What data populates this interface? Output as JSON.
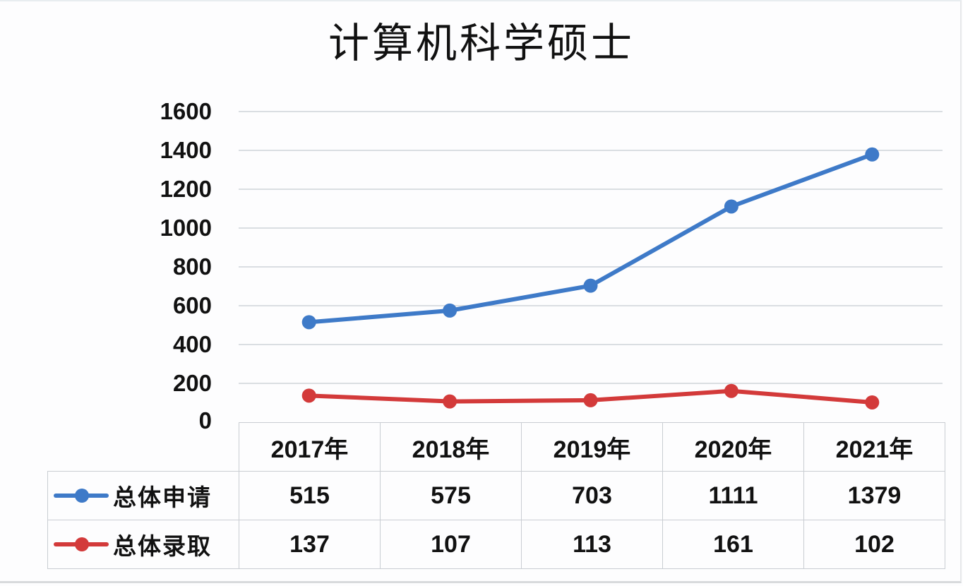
{
  "chart_data": {
    "type": "line",
    "title": "计算机科学硕士",
    "xlabel": "",
    "ylabel": "",
    "categories": [
      "2017年",
      "2018年",
      "2019年",
      "2020年",
      "2021年"
    ],
    "series": [
      {
        "name": "总体申请",
        "color": "#3e7ac8",
        "values": [
          515,
          575,
          703,
          1111,
          1379
        ]
      },
      {
        "name": "总体录取",
        "color": "#d33a3a",
        "values": [
          137,
          107,
          113,
          161,
          102
        ]
      }
    ],
    "ylim": [
      0,
      1600
    ],
    "yticks": [
      0,
      200,
      400,
      600,
      800,
      1000,
      1200,
      1400,
      1600
    ],
    "grid": true,
    "legend_position": "bottom (in data table)",
    "data_table": true
  },
  "table": {
    "headers": [
      "2017年",
      "2018年",
      "2019年",
      "2020年",
      "2021年"
    ],
    "rows": [
      {
        "label": "总体申请",
        "values": [
          "515",
          "575",
          "703",
          "1111",
          "1379"
        ]
      },
      {
        "label": "总体录取",
        "values": [
          "137",
          "107",
          "113",
          "161",
          "102"
        ]
      }
    ]
  },
  "yaxis": {
    "ticks": [
      "1600",
      "1400",
      "1200",
      "1000",
      "800",
      "600",
      "400",
      "200",
      "0"
    ]
  }
}
